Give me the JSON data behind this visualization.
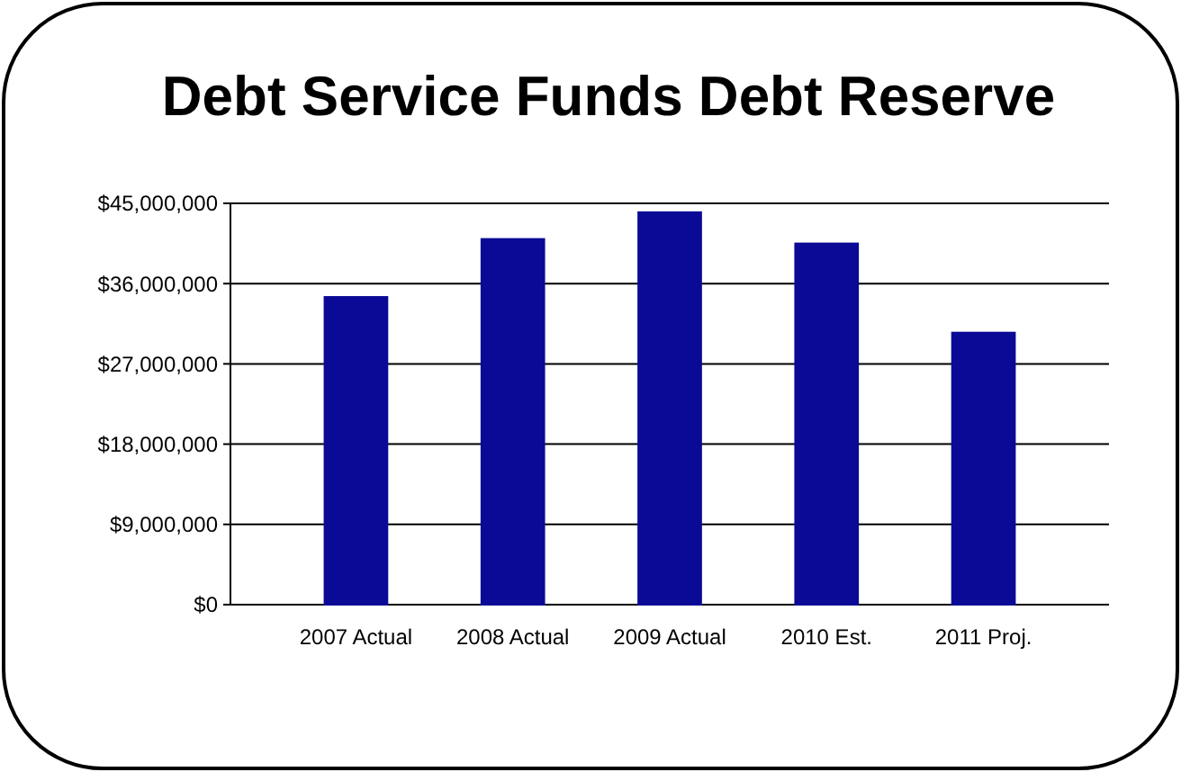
{
  "chart_data": {
    "type": "bar",
    "title": "Debt Service Funds Debt Reserve",
    "categories": [
      "2007 Actual",
      "2008 Actual",
      "2009 Actual",
      "2010 Est.",
      "2011 Proj."
    ],
    "values": [
      34500000,
      41000000,
      44000000,
      40500000,
      30500000
    ],
    "color": "#0a0a96",
    "ylim": [
      0,
      45000000
    ],
    "yticks": [
      {
        "value": 0,
        "label": "$0"
      },
      {
        "value": 9000000,
        "label": "$9,000,000"
      },
      {
        "value": 18000000,
        "label": "$18,000,000"
      },
      {
        "value": 27000000,
        "label": "$27,000,000"
      },
      {
        "value": 36000000,
        "label": "$36,000,000"
      },
      {
        "value": 45000000,
        "label": "$45,000,000"
      }
    ],
    "grid": "y"
  }
}
